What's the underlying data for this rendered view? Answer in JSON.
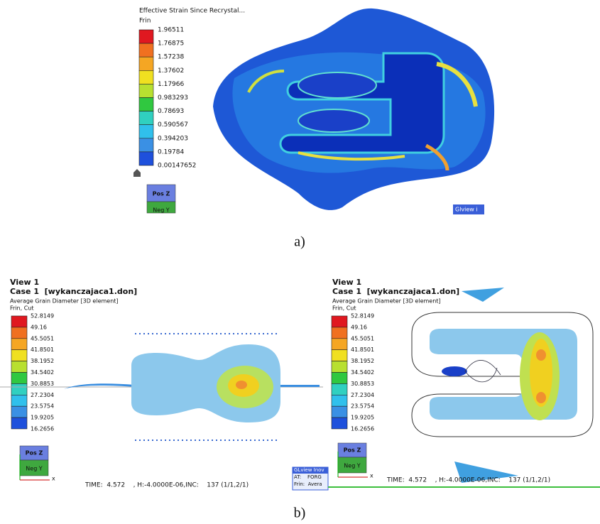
{
  "panel_a": {
    "legend_title": "Effective Strain Since Recrystal...",
    "legend_subtitle": "Frin",
    "legend_values": [
      "1.96511",
      "1.76875",
      "1.57238",
      "1.37602",
      "1.17966",
      "0.983293",
      "0.78693",
      "0.590567",
      "0.394203",
      "0.19784",
      "0.00147652"
    ],
    "cube_top": "Pos Z",
    "cube_front": "Neg Y",
    "badge": "Glview i",
    "caption": "a)"
  },
  "panel_b": {
    "caption": "b)",
    "views": [
      {
        "view": "View 1",
        "case": "Case 1  [wykanczajaca1.don]",
        "variable": "Average Grain Diameter [3D element]",
        "mode": "Frin, Cut",
        "legend_values": [
          "52.8149",
          "49.16",
          "45.5051",
          "41.8501",
          "38.1952",
          "34.5402",
          "30.8853",
          "27.2304",
          "23.5754",
          "19.9205",
          "16.2656"
        ],
        "cube_top": "Pos Z",
        "cube_front": "Neg Y",
        "axis_x": "x",
        "status": "TIME:  4.572    , H:-4.0000E-06,INC:    137 (1/1,2/1)",
        "badge_lines": [
          "GLview Inov",
          "AT:    FORG",
          "Frin:  Avera"
        ]
      },
      {
        "view": "View 1",
        "case": "Case 1  [wykanczajaca1.don]",
        "variable": "Average Grain Diameter [3D element]",
        "mode": "Frin, Cut",
        "legend_values": [
          "52.8149",
          "49.16",
          "45.5051",
          "41.8501",
          "38.1952",
          "34.5402",
          "30.8853",
          "27.2304",
          "23.5754",
          "19.9205",
          "16.2656"
        ],
        "cube_top": "Pos Z",
        "cube_front": "Neg Y",
        "axis_x": "x",
        "status": "TIME:  4.572    , H:-4.0000E-06,INC:    137 (1/1,2/1)"
      }
    ]
  }
}
